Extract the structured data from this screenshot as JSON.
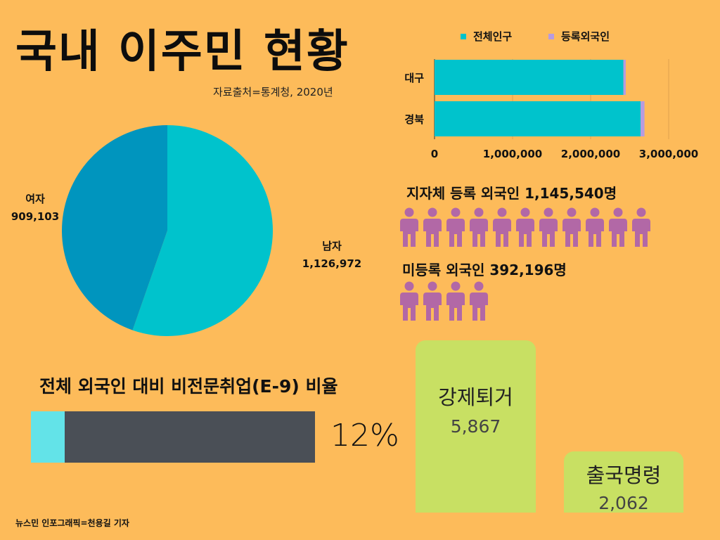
{
  "title": "국내 이주민 현황",
  "source": "자료출처=통계청, 2020년",
  "credit": "뉴스민 인포그래픽=천용길 기자",
  "colors": {
    "background": "#FDBB5A",
    "teal": "#00C3CC",
    "blue": "#0095BE",
    "purple": "#B79BE0",
    "person": "#B268A6",
    "ratio_fill": "#63E3E8",
    "ratio_track": "#4A4F56",
    "card": "#C8E063"
  },
  "chart_data": [
    {
      "type": "pie",
      "slices": [
        {
          "label": "남자",
          "value": 1126972,
          "value_text": "1,126,972",
          "color": "#00C3CC"
        },
        {
          "label": "여자",
          "value": 909103,
          "value_text": "909,103",
          "color": "#0095BE"
        }
      ]
    },
    {
      "type": "bar",
      "orientation": "horizontal",
      "stacked": true,
      "categories": [
        "대구",
        "경북"
      ],
      "series": [
        {
          "name": "전체인구",
          "values": [
            2420000,
            2640000
          ],
          "color": "#00C3CC"
        },
        {
          "name": "등록외국인",
          "values": [
            30000,
            50000
          ],
          "color": "#B79BE0"
        }
      ],
      "xlim": [
        0,
        3000000
      ],
      "x_ticks": [
        "0",
        "1,000,000",
        "2,000,000",
        "3,000,000"
      ],
      "legend": "top",
      "grid": true
    }
  ],
  "registered": {
    "text": "지자체 등록 외국인 1,145,540명",
    "icon_count": 11,
    "icon": "person-icon"
  },
  "unregistered": {
    "text": "미등록 외국인 392,196명",
    "icon_count": 4,
    "icon": "person-icon"
  },
  "ratio": {
    "title": "전체 외국인 대비 비전문취업(E-9) 비율",
    "value": 12,
    "value_text": "12%"
  },
  "deportation": {
    "label": "강제퇴거",
    "value": "5,867"
  },
  "departure_order": {
    "label": "출국명령",
    "value": "2,062"
  }
}
